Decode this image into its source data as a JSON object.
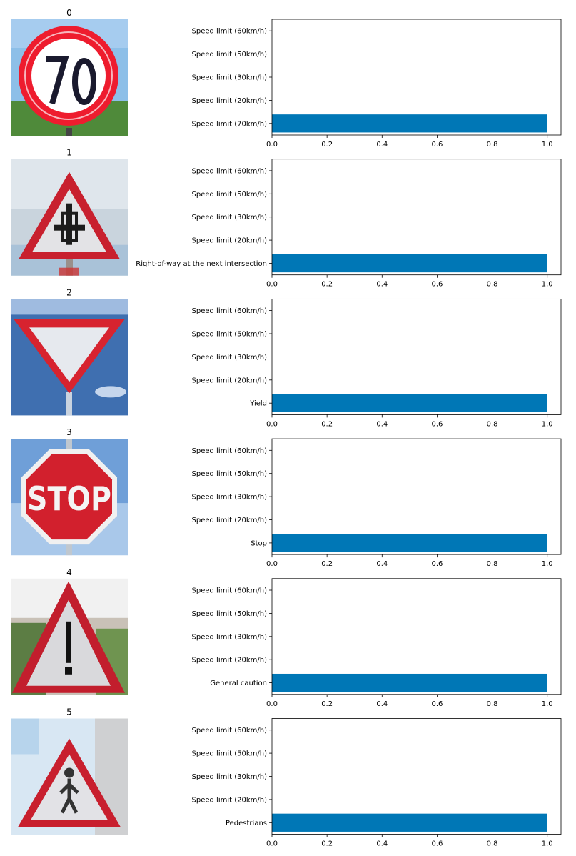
{
  "chart_data": [
    {
      "type": "bar",
      "orientation": "horizontal",
      "image_title": "0",
      "image_icon": "speed-limit-70-sign",
      "categories": [
        "Speed limit (70km/h)",
        "Speed limit (20km/h)",
        "Speed limit (30km/h)",
        "Speed limit (50km/h)",
        "Speed limit (60km/h)"
      ],
      "values": [
        1.0,
        0.0,
        0.0,
        0.0,
        0.0
      ],
      "xlim": [
        0,
        1.05
      ],
      "xticks": [
        "0.0",
        "0.2",
        "0.4",
        "0.6",
        "0.8",
        "1.0"
      ],
      "grid": false,
      "bar_color": "#0077b6"
    },
    {
      "type": "bar",
      "orientation": "horizontal",
      "image_title": "1",
      "image_icon": "right-of-way-intersection-sign",
      "categories": [
        "Right-of-way at the next intersection",
        "Speed limit (20km/h)",
        "Speed limit (30km/h)",
        "Speed limit (50km/h)",
        "Speed limit (60km/h)"
      ],
      "values": [
        1.0,
        0.0,
        0.0,
        0.0,
        0.0
      ],
      "xlim": [
        0,
        1.05
      ],
      "xticks": [
        "0.0",
        "0.2",
        "0.4",
        "0.6",
        "0.8",
        "1.0"
      ],
      "grid": false,
      "bar_color": "#0077b6"
    },
    {
      "type": "bar",
      "orientation": "horizontal",
      "image_title": "2",
      "image_icon": "yield-sign",
      "categories": [
        "Yield",
        "Speed limit (20km/h)",
        "Speed limit (30km/h)",
        "Speed limit (50km/h)",
        "Speed limit (60km/h)"
      ],
      "values": [
        1.0,
        0.0,
        0.0,
        0.0,
        0.0
      ],
      "xlim": [
        0,
        1.05
      ],
      "xticks": [
        "0.0",
        "0.2",
        "0.4",
        "0.6",
        "0.8",
        "1.0"
      ],
      "grid": false,
      "bar_color": "#0077b6"
    },
    {
      "type": "bar",
      "orientation": "horizontal",
      "image_title": "3",
      "image_icon": "stop-sign",
      "sign_text": "STOP",
      "categories": [
        "Stop",
        "Speed limit (20km/h)",
        "Speed limit (30km/h)",
        "Speed limit (50km/h)",
        "Speed limit (60km/h)"
      ],
      "values": [
        1.0,
        0.0,
        0.0,
        0.0,
        0.0
      ],
      "xlim": [
        0,
        1.05
      ],
      "xticks": [
        "0.0",
        "0.2",
        "0.4",
        "0.6",
        "0.8",
        "1.0"
      ],
      "grid": false,
      "bar_color": "#0077b6"
    },
    {
      "type": "bar",
      "orientation": "horizontal",
      "image_title": "4",
      "image_icon": "general-caution-sign",
      "categories": [
        "General caution",
        "Speed limit (20km/h)",
        "Speed limit (30km/h)",
        "Speed limit (50km/h)",
        "Speed limit (60km/h)"
      ],
      "values": [
        1.0,
        0.0,
        0.0,
        0.0,
        0.0
      ],
      "xlim": [
        0,
        1.05
      ],
      "xticks": [
        "0.0",
        "0.2",
        "0.4",
        "0.6",
        "0.8",
        "1.0"
      ],
      "grid": false,
      "bar_color": "#0077b6"
    },
    {
      "type": "bar",
      "orientation": "horizontal",
      "image_title": "5",
      "image_icon": "pedestrians-sign",
      "categories": [
        "Pedestrians",
        "Speed limit (20km/h)",
        "Speed limit (30km/h)",
        "Speed limit (50km/h)",
        "Speed limit (60km/h)"
      ],
      "values": [
        1.0,
        0.0,
        0.0,
        0.0,
        0.0
      ],
      "xlim": [
        0,
        1.05
      ],
      "xticks": [
        "0.0",
        "0.2",
        "0.4",
        "0.6",
        "0.8",
        "1.0"
      ],
      "grid": false,
      "bar_color": "#0077b6"
    }
  ]
}
